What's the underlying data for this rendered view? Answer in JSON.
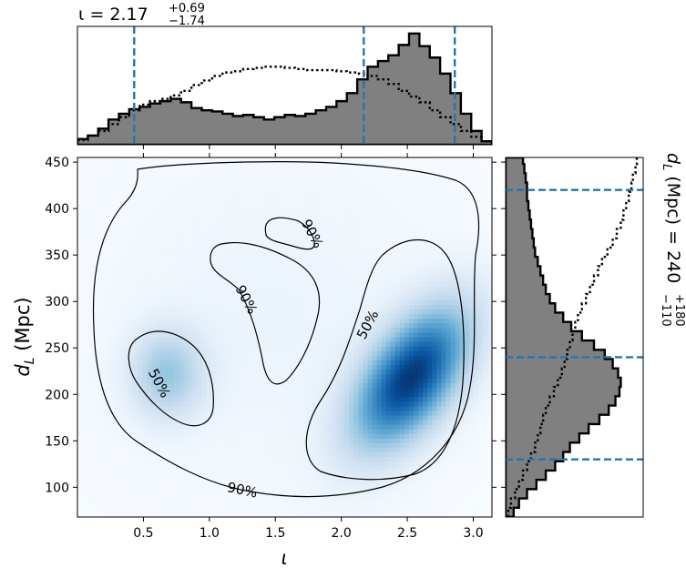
{
  "chart_data": [
    {
      "type": "heatmap",
      "panel": "joint",
      "xlabel": "ι",
      "ylabel": "d_L (Mpc)",
      "xlim": [
        0.0,
        3.1416
      ],
      "ylim": [
        68,
        455
      ],
      "x_ticks": [
        0.5,
        1.0,
        1.5,
        2.0,
        2.5,
        3.0
      ],
      "x_tick_labels": [
        "0.5",
        "1.0",
        "1.5",
        "2.0",
        "2.5",
        "3.0"
      ],
      "y_ticks": [
        100,
        150,
        200,
        250,
        300,
        350,
        400,
        450
      ],
      "y_tick_labels": [
        "100",
        "150",
        "200",
        "250",
        "300",
        "350",
        "400",
        "450"
      ],
      "colormap": "Blues",
      "density_peaks": [
        {
          "x": 2.53,
          "y": 218,
          "weight": 1.0
        },
        {
          "x": 0.68,
          "y": 222,
          "weight": 0.38
        }
      ],
      "contours": [
        {
          "label": "50%",
          "label_positions": [
            {
              "x": 0.62,
              "y": 212,
              "angle": 62
            },
            {
              "x": 2.2,
              "y": 275,
              "angle": -62
            }
          ]
        },
        {
          "label": "90%",
          "label_positions": [
            {
              "x": 1.25,
              "y": 97,
              "angle": 12
            },
            {
              "x": 1.28,
              "y": 302,
              "angle": 62
            },
            {
              "x": 1.78,
              "y": 373,
              "angle": 62
            }
          ]
        }
      ]
    },
    {
      "type": "histogram",
      "panel": "top",
      "title": "ι = 2.17",
      "title_sup": "+0.69",
      "title_sub": "−1.74",
      "xlim": [
        0.0,
        3.1416
      ],
      "bins_x": [
        0.0,
        0.0785,
        0.157,
        0.2356,
        0.3142,
        0.3927,
        0.4712,
        0.5498,
        0.6283,
        0.7069,
        0.7854,
        0.8639,
        0.9425,
        1.021,
        1.0996,
        1.1781,
        1.2566,
        1.3352,
        1.4137,
        1.4923,
        1.5708,
        1.6493,
        1.7279,
        1.8064,
        1.885,
        1.9635,
        2.042,
        2.1206,
        2.1991,
        2.2777,
        2.3562,
        2.4347,
        2.5133,
        2.5918,
        2.6704,
        2.7489,
        2.8274,
        2.906,
        2.9845,
        3.0631,
        3.1416
      ],
      "posterior_heights": [
        0.05,
        0.08,
        0.14,
        0.22,
        0.27,
        0.31,
        0.33,
        0.36,
        0.38,
        0.4,
        0.37,
        0.32,
        0.3,
        0.29,
        0.27,
        0.25,
        0.26,
        0.24,
        0.22,
        0.24,
        0.26,
        0.25,
        0.27,
        0.3,
        0.33,
        0.38,
        0.45,
        0.57,
        0.68,
        0.73,
        0.78,
        0.87,
        0.97,
        0.86,
        0.76,
        0.62,
        0.45,
        0.27,
        0.12,
        0.03
      ],
      "prior_heights": [
        0.04,
        0.08,
        0.12,
        0.18,
        0.24,
        0.3,
        0.35,
        0.38,
        0.4,
        0.43,
        0.47,
        0.52,
        0.56,
        0.6,
        0.63,
        0.64,
        0.66,
        0.67,
        0.68,
        0.68,
        0.67,
        0.66,
        0.65,
        0.65,
        0.65,
        0.64,
        0.63,
        0.62,
        0.6,
        0.57,
        0.53,
        0.47,
        0.42,
        0.37,
        0.3,
        0.24,
        0.18,
        0.12,
        0.07,
        0.03
      ],
      "median": 2.17,
      "lower": 0.43,
      "upper": 2.86
    },
    {
      "type": "histogram",
      "panel": "right",
      "title": "d_L (Mpc) = 240",
      "title_sup": "+180",
      "title_sub": "−110",
      "ylim": [
        68,
        455
      ],
      "median": 240,
      "lower": 130,
      "upper": 420,
      "bins_y": [
        68,
        78,
        88,
        98,
        108,
        118,
        128,
        138,
        148,
        158,
        168,
        178,
        188,
        198,
        208,
        218,
        228,
        238,
        248,
        258,
        268,
        278,
        288,
        298,
        308,
        318,
        328,
        338,
        348,
        358,
        368,
        378,
        388,
        398,
        408,
        418,
        428,
        438,
        448,
        455
      ],
      "posterior_widths": [
        0.06,
        0.1,
        0.16,
        0.23,
        0.3,
        0.37,
        0.43,
        0.48,
        0.55,
        0.62,
        0.7,
        0.77,
        0.82,
        0.85,
        0.86,
        0.84,
        0.8,
        0.74,
        0.66,
        0.57,
        0.49,
        0.43,
        0.37,
        0.33,
        0.3,
        0.28,
        0.26,
        0.24,
        0.22,
        0.21,
        0.2,
        0.19,
        0.18,
        0.17,
        0.16,
        0.16,
        0.15,
        0.14,
        0.13
      ],
      "prior_widths": [
        0.02,
        0.04,
        0.07,
        0.1,
        0.13,
        0.16,
        0.19,
        0.22,
        0.24,
        0.26,
        0.28,
        0.3,
        0.33,
        0.36,
        0.39,
        0.42,
        0.44,
        0.46,
        0.48,
        0.5,
        0.52,
        0.54,
        0.57,
        0.6,
        0.63,
        0.66,
        0.69,
        0.72,
        0.76,
        0.8,
        0.83,
        0.86,
        0.88,
        0.9,
        0.92,
        0.94,
        0.95,
        0.97,
        0.98
      ]
    }
  ]
}
